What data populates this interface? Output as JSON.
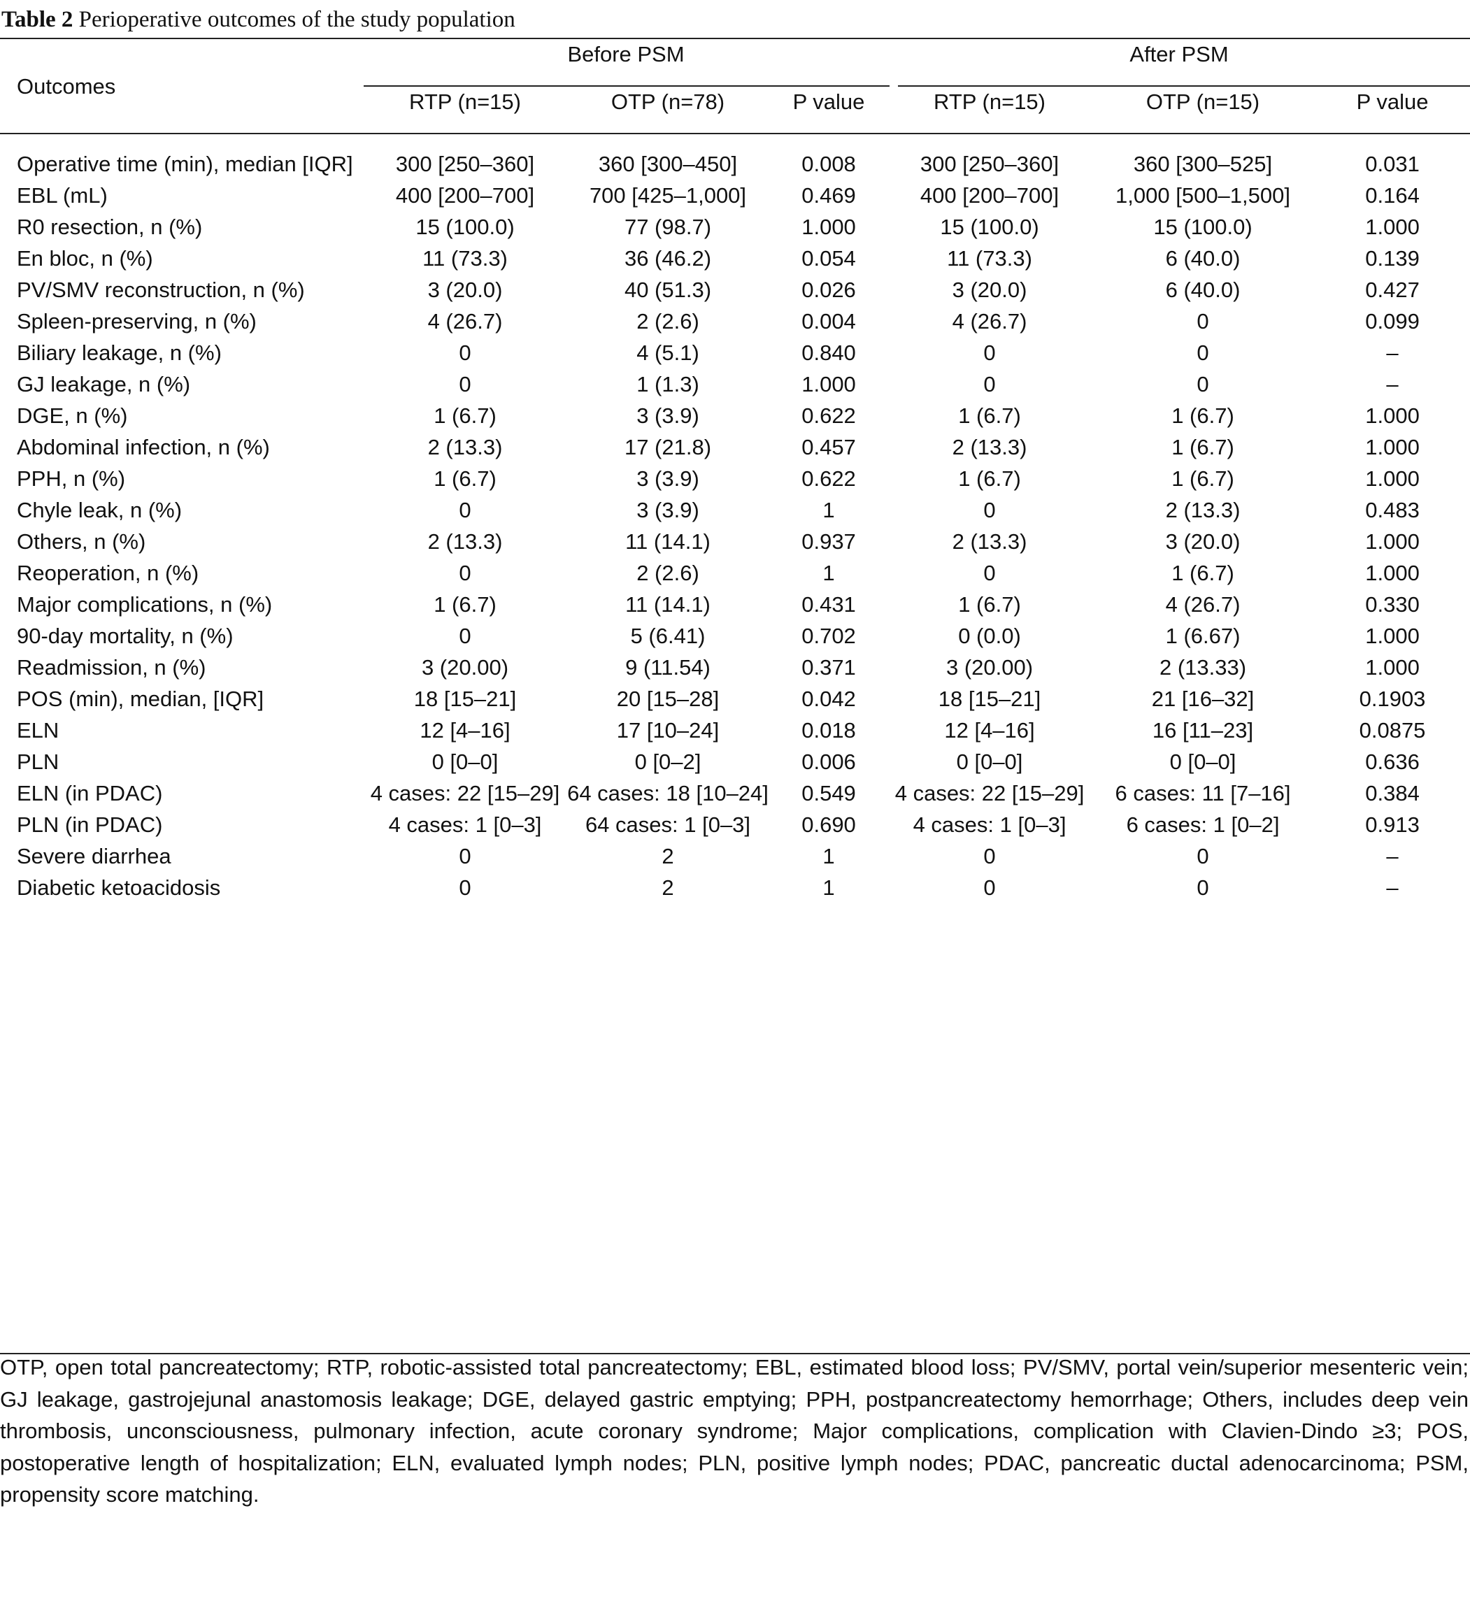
{
  "caption": {
    "label": "Table 2",
    "title": "Perioperative outcomes of the study population"
  },
  "header": {
    "outcomes": "Outcomes",
    "before_psm": "Before PSM",
    "after_psm": "After PSM",
    "columns": [
      "RTP (n=15)",
      "OTP (n=78)",
      "P value",
      "RTP (n=15)",
      "OTP (n=15)",
      "P value"
    ]
  },
  "rows": [
    {
      "label": "Operative time (min), median [IQR]",
      "values": [
        "300 [250–360]",
        "360 [300–450]",
        "0.008",
        "300 [250–360]",
        "360 [300–525]",
        "0.031"
      ]
    },
    {
      "label": "EBL (mL)",
      "values": [
        "400 [200–700]",
        "700 [425–1,000]",
        "0.469",
        "400 [200–700]",
        "1,000 [500–1,500]",
        "0.164"
      ]
    },
    {
      "label": "R0 resection, n (%)",
      "values": [
        "15 (100.0)",
        "77 (98.7)",
        "1.000",
        "15 (100.0)",
        "15 (100.0)",
        "1.000"
      ]
    },
    {
      "label": "En bloc, n (%)",
      "values": [
        "11 (73.3)",
        "36 (46.2)",
        "0.054",
        "11 (73.3)",
        "6 (40.0)",
        "0.139"
      ]
    },
    {
      "label": "PV/SMV reconstruction, n (%)",
      "values": [
        "3 (20.0)",
        "40 (51.3)",
        "0.026",
        "3 (20.0)",
        "6 (40.0)",
        "0.427"
      ]
    },
    {
      "label": "Spleen-preserving, n (%)",
      "values": [
        "4 (26.7)",
        "2 (2.6)",
        "0.004",
        "4 (26.7)",
        "0",
        "0.099"
      ]
    },
    {
      "label": "Biliary leakage, n (%)",
      "values": [
        "0",
        "4 (5.1)",
        "0.840",
        "0",
        "0",
        "–"
      ]
    },
    {
      "label": "GJ leakage, n (%)",
      "values": [
        "0",
        "1 (1.3)",
        "1.000",
        "0",
        "0",
        "–"
      ]
    },
    {
      "label": "DGE, n (%)",
      "values": [
        "1 (6.7)",
        "3 (3.9)",
        "0.622",
        "1 (6.7)",
        "1 (6.7)",
        "1.000"
      ]
    },
    {
      "label": "Abdominal infection, n (%)",
      "values": [
        "2 (13.3)",
        "17 (21.8)",
        "0.457",
        "2 (13.3)",
        "1 (6.7)",
        "1.000"
      ]
    },
    {
      "label": "PPH, n (%)",
      "values": [
        "1 (6.7)",
        "3 (3.9)",
        "0.622",
        "1 (6.7)",
        "1 (6.7)",
        "1.000"
      ]
    },
    {
      "label": "Chyle leak, n (%)",
      "values": [
        "0",
        "3 (3.9)",
        "1",
        "0",
        "2 (13.3)",
        "0.483"
      ]
    },
    {
      "label": "Others, n (%)",
      "values": [
        "2 (13.3)",
        "11 (14.1)",
        "0.937",
        "2 (13.3)",
        "3 (20.0)",
        "1.000"
      ]
    },
    {
      "label": "Reoperation, n (%)",
      "values": [
        "0",
        "2 (2.6)",
        "1",
        "0",
        "1 (6.7)",
        "1.000"
      ]
    },
    {
      "label": "Major complications, n (%)",
      "values": [
        "1 (6.7)",
        "11 (14.1)",
        "0.431",
        "1 (6.7)",
        "4 (26.7)",
        "0.330"
      ]
    },
    {
      "label": "90-day mortality, n (%)",
      "values": [
        "0",
        "5 (6.41)",
        "0.702",
        "0 (0.0)",
        "1 (6.67)",
        "1.000"
      ]
    },
    {
      "label": "Readmission, n (%)",
      "values": [
        "3 (20.00)",
        "9 (11.54)",
        "0.371",
        "3 (20.00)",
        "2 (13.33)",
        "1.000"
      ]
    },
    {
      "label": "POS (min), median, [IQR]",
      "values": [
        "18 [15–21]",
        "20 [15–28]",
        "0.042",
        "18 [15–21]",
        "21 [16–32]",
        "0.1903"
      ]
    },
    {
      "label": "ELN",
      "values": [
        "12 [4–16]",
        "17 [10–24]",
        "0.018",
        "12 [4–16]",
        "16 [11–23]",
        "0.0875"
      ]
    },
    {
      "label": "PLN",
      "values": [
        "0 [0–0]",
        "0 [0–2]",
        "0.006",
        "0 [0–0]",
        "0 [0–0]",
        "0.636"
      ]
    },
    {
      "label": "ELN (in PDAC)",
      "values": [
        "4 cases: 22 [15–29]",
        "64 cases: 18 [10–24]",
        "0.549",
        "4 cases: 22 [15–29]",
        "6 cases: 11 [7–16]",
        "0.384"
      ]
    },
    {
      "label": "PLN (in PDAC)",
      "values": [
        "4 cases: 1 [0–3]",
        "64 cases: 1 [0–3]",
        "0.690",
        "4 cases: 1 [0–3]",
        "6 cases: 1 [0–2]",
        "0.913"
      ]
    },
    {
      "label": "Severe diarrhea",
      "values": [
        "0",
        "2",
        "1",
        "0",
        "0",
        "–"
      ]
    },
    {
      "label": "Diabetic ketoacidosis",
      "values": [
        "0",
        "2",
        "1",
        "0",
        "0",
        "–"
      ]
    }
  ],
  "footnote": "OTP, open total pancreatectomy; RTP, robotic-assisted total pancreatectomy; EBL, estimated blood loss; PV/SMV, portal vein/superior mesenteric vein; GJ leakage, gastrojejunal anastomosis leakage; DGE, delayed gastric emptying; PPH, postpancreatectomy hemorrhage; Others, includes deep vein thrombosis, unconsciousness, pulmonary infection, acute coronary syndrome; Major complications, complication with Clavien-Dindo ≥3; POS, postoperative length of hospitalization; ELN, evaluated lymph nodes; PLN, positive lymph nodes; PDAC, pancreatic ductal adenocarcinoma; PSM, propensity score matching."
}
